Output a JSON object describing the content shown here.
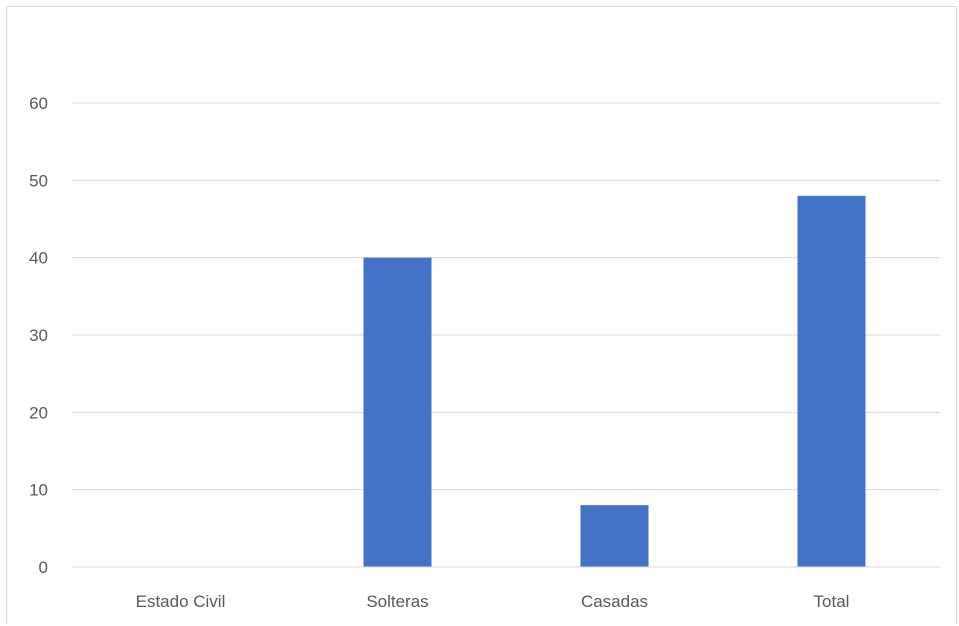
{
  "chart_data": {
    "type": "bar",
    "title": "",
    "xlabel": "",
    "ylabel": "",
    "categories": [
      "Estado Civil",
      "Solteras",
      "Casadas",
      "Total"
    ],
    "values": [
      0,
      40,
      8,
      48
    ],
    "ylim": [
      0,
      60
    ],
    "yticks": [
      0,
      10,
      20,
      30,
      40,
      50,
      60
    ],
    "grid": true,
    "legend": "none",
    "bar_color": "#4472c4"
  }
}
